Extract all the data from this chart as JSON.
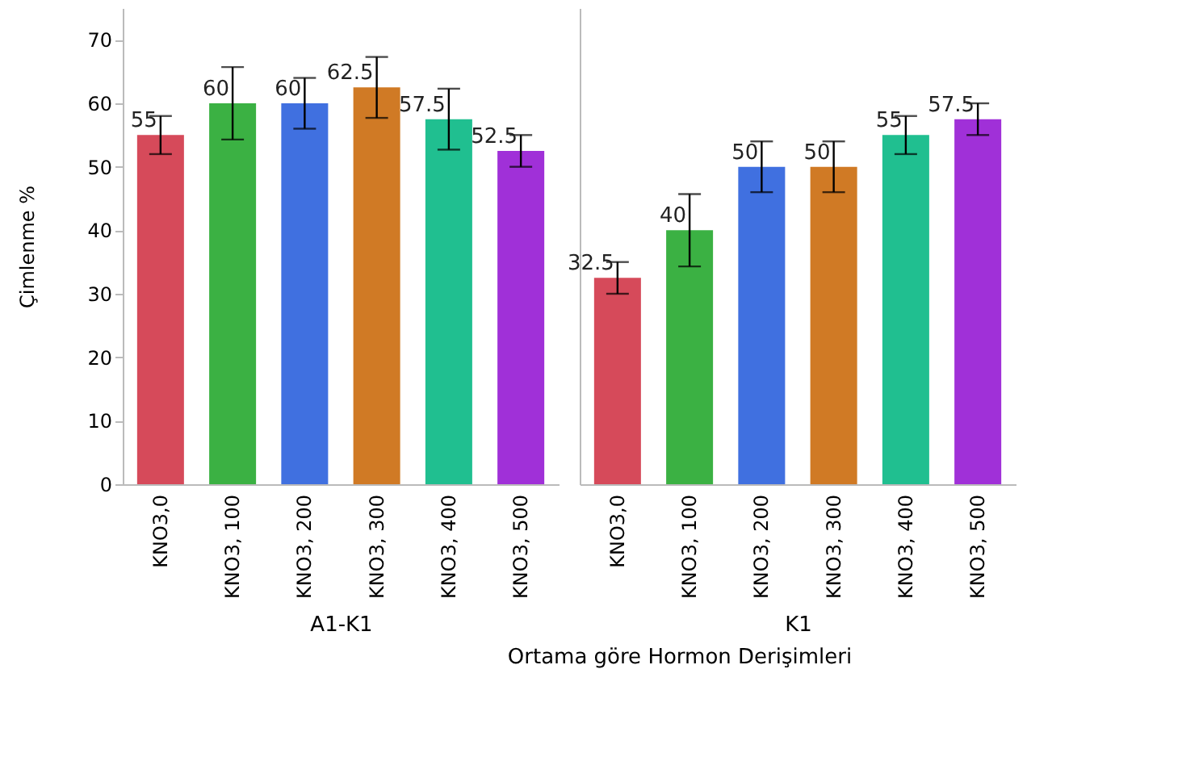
{
  "chart_data": [
    {
      "type": "bar",
      "xlabel": "A1-K1",
      "ylabel": "Çimlenme %",
      "categories": [
        "KNO3,0",
        "KNO3, 100",
        "KNO3, 200",
        "KNO3, 300",
        "KNO3, 400",
        "KNO3, 500"
      ],
      "values": [
        55,
        60,
        60,
        62.5,
        57.5,
        52.5
      ],
      "errors": [
        3,
        5.7,
        4,
        4.8,
        4.8,
        2.5
      ],
      "colors": [
        "#d64a5a",
        "#3bb143",
        "#4070e0",
        "#d07a25",
        "#20bf90",
        "#a030d8"
      ],
      "ylim": [
        0,
        75
      ],
      "yticks": [
        0,
        10,
        20,
        30,
        40,
        50,
        60,
        70
      ],
      "data_labels": true,
      "grid": false,
      "annotations": [
        "Ortama göre Hormon Derişimleri"
      ]
    },
    {
      "type": "bar",
      "xlabel": "K1",
      "categories": [
        "KNO3,0",
        "KNO3, 100",
        "KNO3, 200",
        "KNO3, 300",
        "KNO3, 400",
        "KNO3, 500"
      ],
      "values": [
        32.5,
        40,
        50,
        50,
        55,
        57.5
      ],
      "errors": [
        2.5,
        5.7,
        4,
        4,
        3,
        2.5
      ],
      "colors": [
        "#d64a5a",
        "#3bb143",
        "#4070e0",
        "#d07a25",
        "#20bf90",
        "#a030d8"
      ],
      "ylim": [
        0,
        75
      ],
      "yticks": [
        0,
        10,
        20,
        30,
        40,
        50,
        60,
        70
      ],
      "data_labels": true,
      "grid": false,
      "tick_labels": "x"
    }
  ]
}
